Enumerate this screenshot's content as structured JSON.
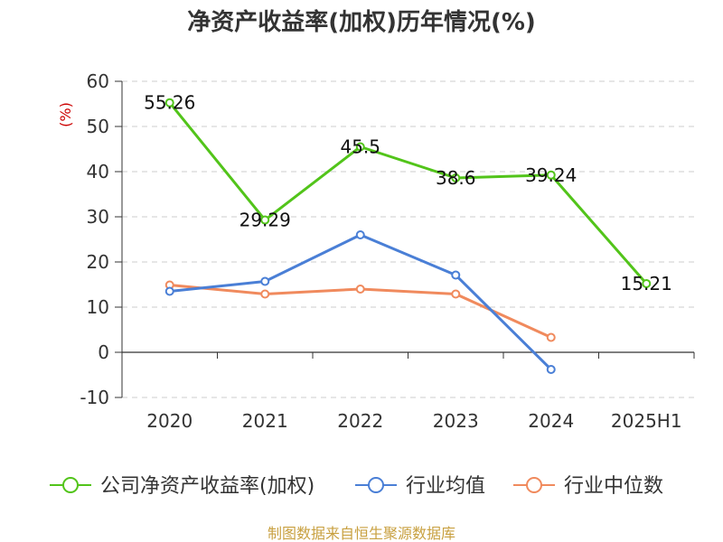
{
  "chart_data": {
    "type": "line",
    "title": "净资产收益率(加权)历年情况(%)",
    "ylabel": "(%)",
    "categories": [
      "2020",
      "2021",
      "2022",
      "2023",
      "2024",
      "2025H1"
    ],
    "ylim": [
      -10,
      60
    ],
    "yticks": [
      60,
      50,
      40,
      30,
      20,
      10,
      0,
      -10
    ],
    "grid": true,
    "legend_position": "bottom",
    "series": [
      {
        "name": "公司净资产收益率(加权)",
        "color": "#52c41a",
        "values": [
          55.26,
          29.29,
          45.5,
          38.6,
          39.24,
          15.21
        ],
        "labels": [
          "55.26",
          "29.29",
          "45.5",
          "38.6",
          "39.24",
          "15.21"
        ]
      },
      {
        "name": "行业均值",
        "color": "#4a7fd6",
        "values": [
          13.5,
          15.7,
          26.0,
          17.1,
          -3.8,
          null
        ]
      },
      {
        "name": "行业中位数",
        "color": "#f08a5d",
        "values": [
          14.9,
          12.9,
          14.0,
          12.9,
          3.3,
          null
        ]
      }
    ]
  },
  "footer": {
    "source": "制图数据来自恒生聚源数据库"
  }
}
